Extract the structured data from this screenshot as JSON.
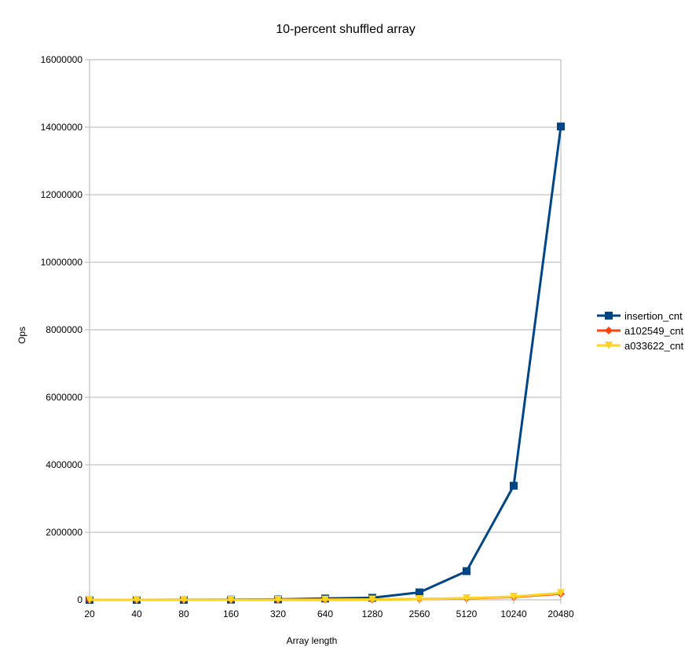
{
  "chart_data": {
    "type": "line",
    "title": "10-percent shuffled array",
    "xlabel": "Array length",
    "ylabel": "Ops",
    "categories": [
      "20",
      "40",
      "80",
      "160",
      "320",
      "640",
      "1280",
      "2560",
      "5120",
      "10240",
      "20480"
    ],
    "yticks": [
      "0",
      "2000000",
      "4000000",
      "6000000",
      "8000000",
      "10000000",
      "12000000",
      "14000000",
      "16000000"
    ],
    "ylim": [
      0,
      16000000
    ],
    "grid": true,
    "legend_position": "right",
    "series": [
      {
        "name": "insertion_cnt",
        "color": "#004586",
        "marker": "square",
        "values": [
          100,
          400,
          1600,
          6000,
          14000,
          40000,
          60000,
          220000,
          850000,
          3380000,
          14020000
        ]
      },
      {
        "name": "a102549_cnt",
        "color": "#ff420e",
        "marker": "diamond",
        "values": [
          80,
          200,
          500,
          1000,
          2500,
          5000,
          10000,
          22000,
          45000,
          85000,
          180000
        ]
      },
      {
        "name": "a033622_cnt",
        "color": "#ffd320",
        "marker": "triangle-down",
        "values": [
          90,
          220,
          550,
          1100,
          2700,
          5500,
          11000,
          24000,
          50000,
          95000,
          200000
        ]
      }
    ]
  }
}
